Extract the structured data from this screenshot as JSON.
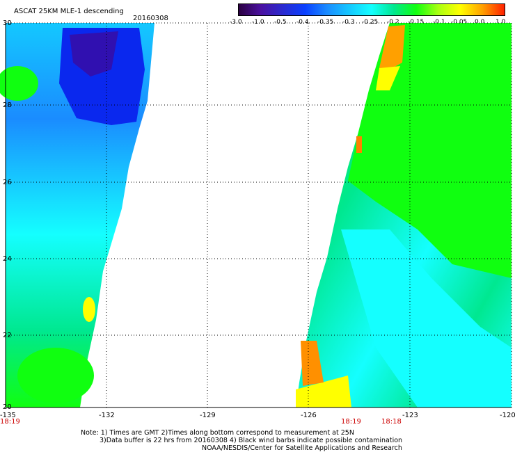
{
  "header": {
    "product": "ASCAT 25KM MLE-1 descending",
    "date": "20160308"
  },
  "colorbar": {
    "labels": [
      "-3.0",
      "-1.0",
      "-0.5",
      "-0.4",
      "-0.35",
      "-0.3",
      "-0.25",
      "-0.2",
      "-0.15",
      "-0.1",
      "-0.05",
      "0.0",
      "1.0"
    ],
    "colors": [
      "#2a0040",
      "#4a10a0",
      "#2a2ad0",
      "#0a40ff",
      "#1a8cff",
      "#14c8ff",
      "#14ffff",
      "#00e890",
      "#10ff10",
      "#a8ff10",
      "#ffff00",
      "#ffa000",
      "#ff2000"
    ]
  },
  "map": {
    "x_ticks": [
      "-135",
      "-132",
      "-129",
      "-126",
      "-123",
      "-120"
    ],
    "y_ticks": [
      "30",
      "28",
      "26",
      "24",
      "22",
      "20"
    ],
    "time_labels": [
      "18:19",
      "18:19",
      "18:18"
    ]
  },
  "footer": {
    "line1": "Note: 1) Times are GMT 2)Times along bottom correspond to measurement at 25N",
    "line2": "3)Data buffer is 22 hrs from 20160308 4) Black wind barbs indicate possible contamination",
    "line3": "NOAA/NESDIS/Center for Satellite Applications and Research"
  }
}
